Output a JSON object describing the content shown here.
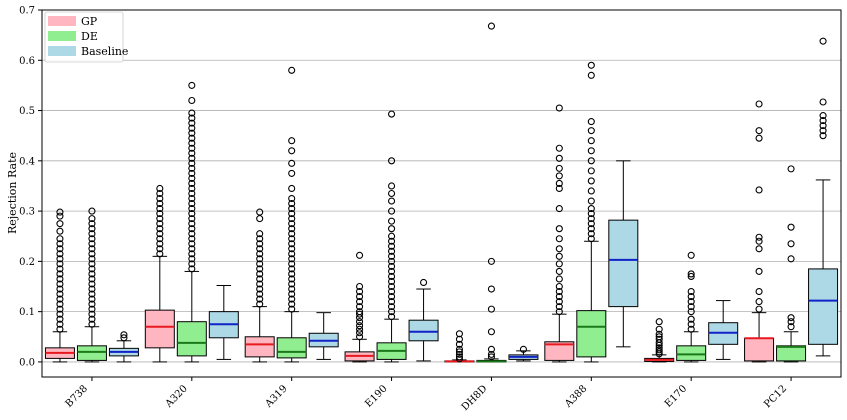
{
  "chart_data": {
    "type": "box",
    "title": "",
    "xlabel": "",
    "ylabel": "Rejection Rate",
    "ylim": [
      -0.03,
      0.7
    ],
    "yticks": [
      "0.0",
      "0.1",
      "0.2",
      "0.3",
      "0.4",
      "0.5",
      "0.6",
      "0.7"
    ],
    "grid": "horizontal",
    "legend_position": "top-left",
    "categories": [
      "B738",
      "A320",
      "A319",
      "E190",
      "DH8D",
      "A388",
      "E170",
      "PC12"
    ],
    "series": [
      {
        "name": "GP",
        "fill": "#ffb6c1",
        "median_color": "#e8191f",
        "boxes": [
          {
            "whislo": 0.0,
            "q1": 0.007,
            "med": 0.018,
            "q3": 0.028,
            "whishi": 0.06,
            "fliers": [
              0.065,
              0.075,
              0.085,
              0.095,
              0.105,
              0.115,
              0.125,
              0.135,
              0.145,
              0.155,
              0.165,
              0.175,
              0.185,
              0.195,
              0.205,
              0.215,
              0.225,
              0.235,
              0.245,
              0.26,
              0.275,
              0.29,
              0.298
            ]
          },
          {
            "whislo": 0.0,
            "q1": 0.028,
            "med": 0.07,
            "q3": 0.103,
            "whishi": 0.21,
            "fliers": [
              0.215,
              0.225,
              0.235,
              0.245,
              0.255,
              0.265,
              0.275,
              0.285,
              0.295,
              0.305,
              0.315,
              0.325,
              0.335,
              0.345
            ]
          },
          {
            "whislo": 0.0,
            "q1": 0.01,
            "med": 0.035,
            "q3": 0.05,
            "whishi": 0.11,
            "fliers": [
              0.115,
              0.125,
              0.135,
              0.145,
              0.155,
              0.165,
              0.175,
              0.185,
              0.195,
              0.205,
              0.215,
              0.225,
              0.235,
              0.245,
              0.255,
              0.285,
              0.298
            ]
          },
          {
            "whislo": 0.0,
            "q1": 0.002,
            "med": 0.012,
            "q3": 0.02,
            "whishi": 0.045,
            "fliers": [
              0.05,
              0.058,
              0.065,
              0.072,
              0.08,
              0.088,
              0.095,
              0.1,
              0.11,
              0.12,
              0.13,
              0.14,
              0.15,
              0.212
            ]
          },
          {
            "whislo": 0.0,
            "q1": 0.0,
            "med": 0.001,
            "q3": 0.002,
            "whishi": 0.004,
            "fliers": [
              0.006,
              0.01,
              0.015,
              0.02,
              0.025,
              0.035,
              0.045,
              0.056
            ]
          },
          {
            "whislo": 0.0,
            "q1": 0.003,
            "med": 0.035,
            "q3": 0.04,
            "whishi": 0.095,
            "fliers": [
              0.1,
              0.11,
              0.12,
              0.13,
              0.14,
              0.15,
              0.165,
              0.18,
              0.195,
              0.21,
              0.225,
              0.245,
              0.265,
              0.305,
              0.345,
              0.355,
              0.37,
              0.385,
              0.405,
              0.425,
              0.505
            ]
          },
          {
            "whislo": 0.0,
            "q1": 0.001,
            "med": 0.004,
            "q3": 0.007,
            "whishi": 0.014,
            "fliers": [
              0.016,
              0.02,
              0.024,
              0.028,
              0.033,
              0.038,
              0.045,
              0.05,
              0.055,
              0.065,
              0.08
            ]
          },
          {
            "whislo": 0.0,
            "q1": 0.002,
            "med": 0.047,
            "q3": 0.047,
            "whishi": 0.098,
            "fliers": [
              0.105,
              0.12,
              0.14,
              0.18,
              0.225,
              0.24,
              0.248,
              0.342,
              0.445,
              0.46,
              0.513
            ]
          }
        ]
      },
      {
        "name": "DE",
        "fill": "#90ee90",
        "median_color": "#1a7a1a",
        "boxes": [
          {
            "whislo": 0.0,
            "q1": 0.003,
            "med": 0.02,
            "q3": 0.032,
            "whishi": 0.07,
            "fliers": [
              0.075,
              0.085,
              0.095,
              0.105,
              0.115,
              0.125,
              0.135,
              0.145,
              0.155,
              0.165,
              0.175,
              0.185,
              0.195,
              0.205,
              0.215,
              0.225,
              0.235,
              0.245,
              0.255,
              0.265,
              0.275,
              0.285,
              0.3
            ]
          },
          {
            "whislo": 0.0,
            "q1": 0.012,
            "med": 0.038,
            "q3": 0.08,
            "whishi": 0.18,
            "fliers": [
              0.185,
              0.195,
              0.205,
              0.215,
              0.225,
              0.235,
              0.245,
              0.255,
              0.265,
              0.275,
              0.285,
              0.295,
              0.305,
              0.315,
              0.325,
              0.335,
              0.345,
              0.355,
              0.365,
              0.375,
              0.385,
              0.395,
              0.405,
              0.415,
              0.425,
              0.435,
              0.445,
              0.455,
              0.465,
              0.475,
              0.485,
              0.495,
              0.52,
              0.55
            ]
          },
          {
            "whislo": 0.0,
            "q1": 0.008,
            "med": 0.02,
            "q3": 0.048,
            "whishi": 0.1,
            "fliers": [
              0.105,
              0.115,
              0.125,
              0.135,
              0.145,
              0.155,
              0.165,
              0.175,
              0.185,
              0.195,
              0.205,
              0.215,
              0.225,
              0.235,
              0.245,
              0.255,
              0.265,
              0.275,
              0.285,
              0.295,
              0.305,
              0.315,
              0.325,
              0.345,
              0.375,
              0.395,
              0.42,
              0.44,
              0.58
            ]
          },
          {
            "whislo": 0.0,
            "q1": 0.005,
            "med": 0.022,
            "q3": 0.038,
            "whishi": 0.085,
            "fliers": [
              0.09,
              0.1,
              0.11,
              0.12,
              0.13,
              0.14,
              0.15,
              0.16,
              0.17,
              0.18,
              0.19,
              0.2,
              0.21,
              0.22,
              0.23,
              0.24,
              0.25,
              0.265,
              0.28,
              0.3,
              0.32,
              0.335,
              0.35,
              0.4,
              0.493
            ]
          },
          {
            "whislo": 0.0,
            "q1": 0.0,
            "med": 0.001,
            "q3": 0.003,
            "whishi": 0.006,
            "fliers": [
              0.01,
              0.015,
              0.025,
              0.06,
              0.105,
              0.145,
              0.2,
              0.668
            ]
          },
          {
            "whislo": 0.0,
            "q1": 0.01,
            "med": 0.07,
            "q3": 0.102,
            "whishi": 0.24,
            "fliers": [
              0.245,
              0.255,
              0.265,
              0.275,
              0.285,
              0.295,
              0.305,
              0.32,
              0.34,
              0.36,
              0.38,
              0.4,
              0.42,
              0.44,
              0.46,
              0.478,
              0.57,
              0.59
            ]
          },
          {
            "whislo": 0.0,
            "q1": 0.003,
            "med": 0.015,
            "q3": 0.032,
            "whishi": 0.06,
            "fliers": [
              0.065,
              0.075,
              0.085,
              0.1,
              0.11,
              0.12,
              0.13,
              0.14,
              0.17,
              0.175,
              0.212
            ]
          },
          {
            "whislo": 0.0,
            "q1": 0.002,
            "med": 0.03,
            "q3": 0.032,
            "whishi": 0.06,
            "fliers": [
              0.07,
              0.08,
              0.088,
              0.205,
              0.235,
              0.268,
              0.384
            ]
          }
        ]
      },
      {
        "name": "Baseline",
        "fill": "#add8e6",
        "median_color": "#1022c8",
        "boxes": [
          {
            "whislo": 0.0,
            "q1": 0.012,
            "med": 0.02,
            "q3": 0.027,
            "whishi": 0.042,
            "fliers": [
              0.048,
              0.054
            ]
          },
          {
            "whislo": 0.005,
            "q1": 0.048,
            "med": 0.075,
            "q3": 0.1,
            "whishi": 0.152,
            "fliers": []
          },
          {
            "whislo": 0.005,
            "q1": 0.03,
            "med": 0.042,
            "q3": 0.057,
            "whishi": 0.098,
            "fliers": []
          },
          {
            "whislo": 0.002,
            "q1": 0.042,
            "med": 0.06,
            "q3": 0.083,
            "whishi": 0.145,
            "fliers": [
              0.158
            ]
          },
          {
            "whislo": 0.002,
            "q1": 0.005,
            "med": 0.01,
            "q3": 0.014,
            "whishi": 0.022,
            "fliers": [
              0.025
            ]
          },
          {
            "whislo": 0.03,
            "q1": 0.11,
            "med": 0.203,
            "q3": 0.282,
            "whishi": 0.4,
            "fliers": []
          },
          {
            "whislo": 0.005,
            "q1": 0.035,
            "med": 0.058,
            "q3": 0.078,
            "whishi": 0.122,
            "fliers": []
          },
          {
            "whislo": 0.012,
            "q1": 0.035,
            "med": 0.122,
            "q3": 0.185,
            "whishi": 0.362,
            "fliers": [
              0.45,
              0.46,
              0.47,
              0.48,
              0.49,
              0.517,
              0.638
            ]
          }
        ]
      }
    ]
  }
}
